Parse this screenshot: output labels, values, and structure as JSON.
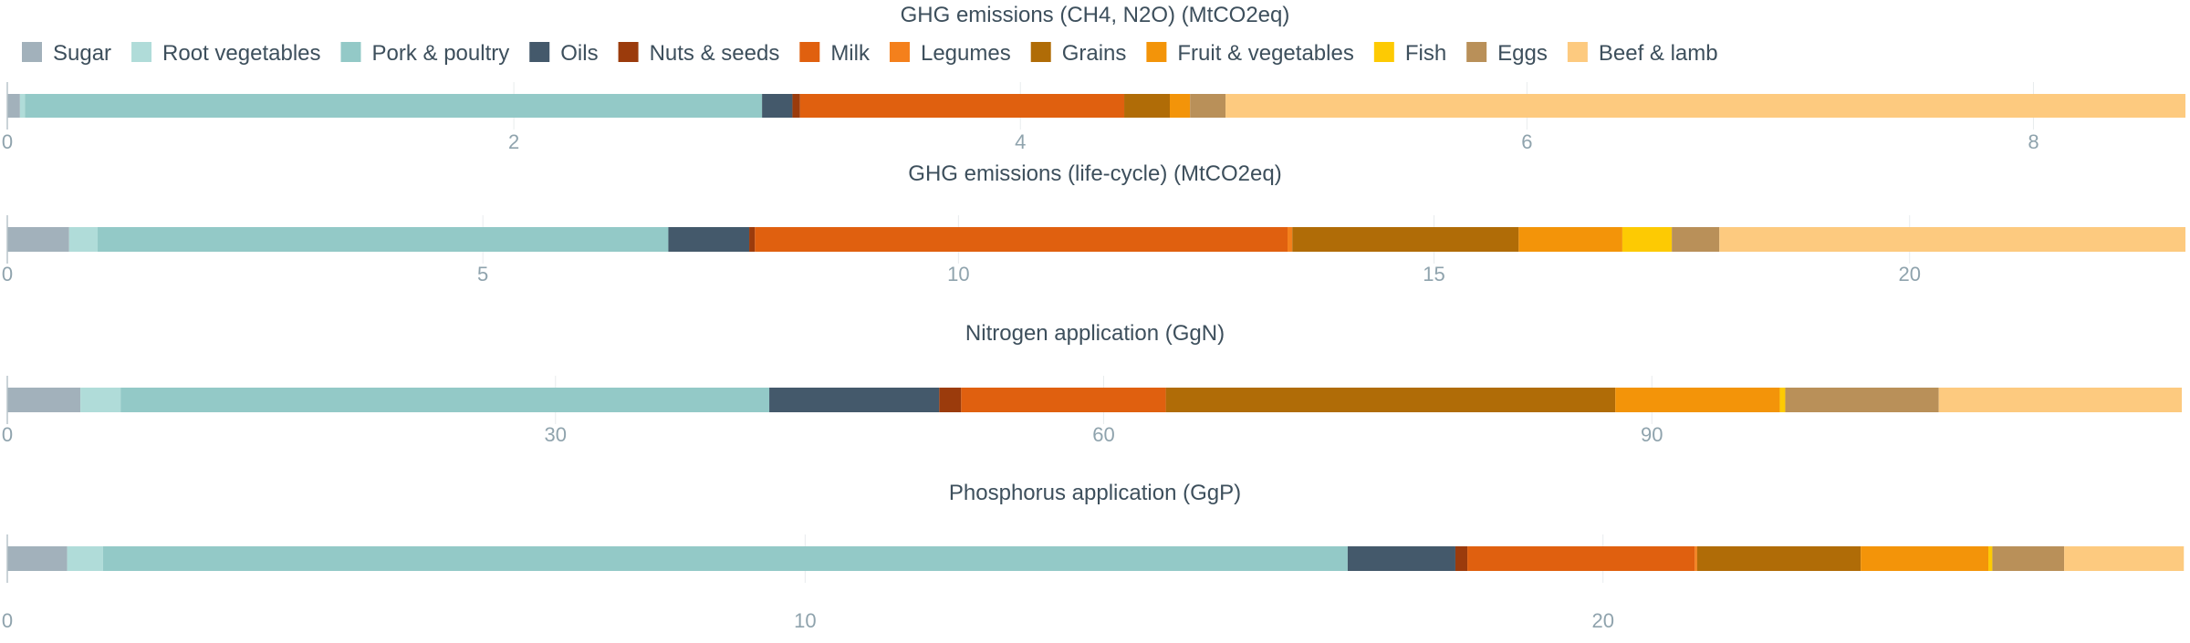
{
  "chart_data": {
    "type": "bar",
    "orientation": "horizontal-stacked",
    "legend": {
      "position": "top",
      "items": [
        {
          "name": "Sugar",
          "color": "#a2b1bb"
        },
        {
          "name": "Root vegetables",
          "color": "#b0dcd9"
        },
        {
          "name": "Pork & poultry",
          "color": "#93c9c7"
        },
        {
          "name": "Oils",
          "color": "#44596b"
        },
        {
          "name": "Nuts & seeds",
          "color": "#9b3b0c"
        },
        {
          "name": "Milk",
          "color": "#e0600f"
        },
        {
          "name": "Legumes",
          "color": "#f4801c"
        },
        {
          "name": "Grains",
          "color": "#b06c07"
        },
        {
          "name": "Fruit & vegetables",
          "color": "#f39409"
        },
        {
          "name": "Fish",
          "color": "#fdca03"
        },
        {
          "name": "Eggs",
          "color": "#b99059"
        },
        {
          "name": "Beef & lamb",
          "color": "#fdca7f"
        }
      ]
    },
    "panels": [
      {
        "title": "GHG emissions (CH4, N2O) (MtCO2eq)",
        "xlim": [
          0,
          8.6
        ],
        "ticks": [
          0,
          2,
          4,
          6,
          8
        ],
        "tick_labels": [
          "0",
          "2",
          "4",
          "6",
          "8"
        ],
        "values": [
          0.05,
          0.02,
          2.91,
          0.12,
          0.03,
          1.28,
          0.0,
          0.18,
          0.08,
          0.0,
          0.14,
          3.79
        ]
      },
      {
        "title": "GHG emissions (life-cycle) (MtCO2eq)",
        "xlim": [
          0,
          22.9
        ],
        "ticks": [
          0,
          5,
          10,
          15,
          20
        ],
        "tick_labels": [
          "0",
          "5",
          "10",
          "15",
          "20"
        ],
        "values": [
          0.65,
          0.3,
          6.0,
          0.85,
          0.06,
          5.6,
          0.05,
          2.38,
          1.09,
          0.52,
          0.5,
          4.9
        ]
      },
      {
        "title": "Nitrogen application (GgN)",
        "xlim": [
          0,
          119.2
        ],
        "ticks": [
          0,
          30,
          60,
          90
        ],
        "tick_labels": [
          "0",
          "30",
          "60",
          "90"
        ],
        "values": [
          4.0,
          2.2,
          35.5,
          9.3,
          1.2,
          11.2,
          0.0,
          24.6,
          9.0,
          0.3,
          8.4,
          13.3
        ]
      },
      {
        "title": "Phosphorus application (GgP)",
        "xlim": [
          0,
          27.3
        ],
        "ticks": [
          0,
          10,
          20
        ],
        "tick_labels": [
          "0",
          "10",
          "20"
        ],
        "values": [
          0.75,
          0.45,
          15.6,
          1.35,
          0.15,
          2.85,
          0.03,
          2.05,
          1.6,
          0.05,
          0.9,
          1.5
        ]
      }
    ]
  }
}
